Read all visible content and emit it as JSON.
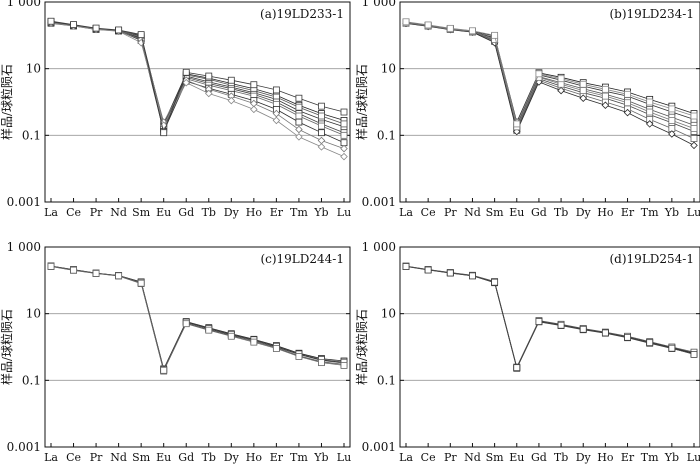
{
  "chart_data": [
    {
      "type": "line",
      "title": "(a)19LD233-1",
      "ylabel": "样品/球粒陨石",
      "xlabel": "",
      "y_scale": "log",
      "ylim": [
        0.001,
        1000
      ],
      "y_ticks": [
        "1 000",
        "10",
        "0.1",
        "0.001"
      ],
      "categories": [
        "La",
        "Ce",
        "Pr",
        "Nd",
        "Sm",
        "Eu",
        "Gd",
        "Tb",
        "Dy",
        "Ho",
        "Er",
        "Tm",
        "Yb",
        "Lu"
      ],
      "grid": true,
      "series": [
        {
          "values": [
            260,
            200,
            160,
            140,
            95,
            0.22,
            7.0,
            5.2,
            3.6,
            2.5,
            1.6,
            0.8,
            0.45,
            0.28
          ],
          "marker": "square"
        },
        {
          "values": [
            240,
            195,
            155,
            135,
            80,
            0.18,
            6.0,
            4.0,
            2.8,
            1.9,
            1.2,
            0.55,
            0.3,
            0.18
          ],
          "marker": "square"
        },
        {
          "values": [
            255,
            205,
            160,
            140,
            100,
            0.2,
            6.5,
            4.8,
            3.2,
            2.2,
            1.4,
            0.7,
            0.38,
            0.22
          ],
          "marker": "square"
        },
        {
          "values": [
            230,
            190,
            150,
            135,
            85,
            0.16,
            5.5,
            3.6,
            2.5,
            1.7,
            1.0,
            0.45,
            0.22,
            0.12
          ],
          "marker": "square"
        },
        {
          "values": [
            250,
            200,
            160,
            140,
            90,
            0.15,
            5.0,
            3.2,
            2.2,
            1.5,
            0.85,
            0.38,
            0.19,
            0.1
          ],
          "marker": "square"
        },
        {
          "values": [
            245,
            200,
            155,
            138,
            70,
            0.13,
            4.2,
            2.6,
            1.7,
            1.1,
            0.6,
            0.25,
            0.12,
            0.06
          ],
          "marker": "square"
        },
        {
          "values": [
            240,
            195,
            155,
            135,
            75,
            0.25,
            4.5,
            2.4,
            1.5,
            0.9,
            0.45,
            0.15,
            0.07,
            0.04
          ],
          "marker": "diamond"
        },
        {
          "values": [
            235,
            190,
            150,
            132,
            60,
            0.2,
            3.8,
            1.8,
            1.1,
            0.6,
            0.28,
            0.09,
            0.045,
            0.023
          ],
          "marker": "diamond"
        },
        {
          "values": [
            265,
            210,
            165,
            145,
            105,
            0.12,
            7.8,
            6.0,
            4.5,
            3.3,
            2.3,
            1.3,
            0.75,
            0.5
          ],
          "marker": "square"
        }
      ]
    },
    {
      "type": "line",
      "title": "(b)19LD234-1",
      "ylabel": "样品/球粒陨石",
      "xlabel": "",
      "y_scale": "log",
      "ylim": [
        0.001,
        1000
      ],
      "y_ticks": [
        "1 000",
        "10",
        "0.1",
        "0.001"
      ],
      "categories": [
        "La",
        "Ce",
        "Pr",
        "Nd",
        "Sm",
        "Eu",
        "Gd",
        "Tb",
        "Dy",
        "Ho",
        "Er",
        "Tm",
        "Yb",
        "Lu"
      ],
      "grid": true,
      "series": [
        {
          "values": [
            250,
            200,
            160,
            135,
            95,
            0.25,
            7.5,
            5.5,
            3.8,
            2.8,
            2.0,
            1.2,
            0.75,
            0.45
          ],
          "marker": "square"
        },
        {
          "values": [
            240,
            195,
            155,
            130,
            85,
            0.2,
            6.5,
            4.5,
            3.0,
            2.1,
            1.5,
            0.85,
            0.5,
            0.3
          ],
          "marker": "square"
        },
        {
          "values": [
            245,
            195,
            158,
            132,
            80,
            0.17,
            5.8,
            3.8,
            2.5,
            1.7,
            1.1,
            0.6,
            0.35,
            0.2
          ],
          "marker": "square"
        },
        {
          "values": [
            235,
            190,
            150,
            128,
            70,
            0.15,
            5.0,
            3.0,
            1.9,
            1.3,
            0.8,
            0.42,
            0.24,
            0.13
          ],
          "marker": "square"
        },
        {
          "values": [
            230,
            188,
            150,
            125,
            65,
            0.14,
            4.5,
            2.6,
            1.6,
            1.0,
            0.62,
            0.3,
            0.16,
            0.08
          ],
          "marker": "square"
        },
        {
          "values": [
            228,
            185,
            148,
            125,
            60,
            0.13,
            4.0,
            2.2,
            1.3,
            0.8,
            0.48,
            0.22,
            0.11,
            0.05
          ],
          "marker": "diamond"
        },
        {
          "values": [
            238,
            192,
            152,
            130,
            75,
            0.18,
            5.5,
            3.4,
            2.2,
            1.5,
            0.95,
            0.5,
            0.28,
            0.16
          ],
          "marker": "square"
        },
        {
          "values": [
            255,
            205,
            162,
            137,
            100,
            0.22,
            7.0,
            5.0,
            3.4,
            2.4,
            1.7,
            1.0,
            0.62,
            0.38
          ],
          "marker": "square"
        }
      ]
    },
    {
      "type": "line",
      "title": "(c)19LD244-1",
      "ylabel": "样品/球粒陨石",
      "xlabel": "",
      "y_scale": "log",
      "ylim": [
        0.001,
        1000
      ],
      "y_ticks": [
        "1 000",
        "10",
        "0.1",
        "0.001"
      ],
      "categories": [
        "La",
        "Ce",
        "Pr",
        "Nd",
        "Sm",
        "Eu",
        "Gd",
        "Tb",
        "Dy",
        "Ho",
        "Er",
        "Tm",
        "Yb",
        "Lu"
      ],
      "grid": true,
      "series": [
        {
          "values": [
            270,
            210,
            165,
            140,
            90,
            0.22,
            5.8,
            3.8,
            2.5,
            1.7,
            1.1,
            0.65,
            0.45,
            0.38
          ],
          "marker": "square"
        },
        {
          "values": [
            265,
            205,
            162,
            138,
            85,
            0.2,
            5.5,
            3.5,
            2.3,
            1.6,
            1.0,
            0.6,
            0.4,
            0.33
          ],
          "marker": "square"
        },
        {
          "values": [
            260,
            200,
            160,
            135,
            80,
            0.19,
            5.2,
            3.3,
            2.2,
            1.5,
            0.95,
            0.55,
            0.36,
            0.3
          ],
          "marker": "square"
        },
        {
          "values": [
            268,
            208,
            164,
            139,
            88,
            0.21,
            5.6,
            3.6,
            2.4,
            1.65,
            1.05,
            0.62,
            0.42,
            0.35
          ],
          "marker": "square"
        },
        {
          "values": [
            262,
            202,
            161,
            137,
            82,
            0.2,
            5.0,
            3.2,
            2.1,
            1.4,
            0.9,
            0.52,
            0.34,
            0.28
          ],
          "marker": "square"
        }
      ]
    },
    {
      "type": "line",
      "title": "(d)19LD254-1",
      "ylabel": "样品/球粒陨石",
      "xlabel": "",
      "y_scale": "log",
      "ylim": [
        0.001,
        1000
      ],
      "y_ticks": [
        "1 000",
        "10",
        "0.1",
        "0.001"
      ],
      "categories": [
        "La",
        "Ce",
        "Pr",
        "Nd",
        "Sm",
        "Eu",
        "Gd",
        "Tb",
        "Dy",
        "Ho",
        "Er",
        "Tm",
        "Yb",
        "Lu"
      ],
      "grid": true,
      "series": [
        {
          "values": [
            265,
            210,
            170,
            140,
            90,
            0.24,
            6.0,
            4.6,
            3.5,
            2.7,
            2.0,
            1.4,
            0.95,
            0.65
          ],
          "marker": "square"
        },
        {
          "values": [
            262,
            205,
            165,
            137,
            85,
            0.23,
            5.7,
            4.4,
            3.3,
            2.6,
            1.9,
            1.3,
            0.9,
            0.62
          ],
          "marker": "square"
        },
        {
          "values": [
            268,
            212,
            172,
            142,
            92,
            0.25,
            6.2,
            4.8,
            3.6,
            2.8,
            2.1,
            1.45,
            1.0,
            0.7
          ],
          "marker": "square"
        },
        {
          "values": [
            260,
            204,
            166,
            136,
            88,
            0.24,
            5.8,
            4.5,
            3.4,
            2.65,
            1.95,
            1.35,
            0.92,
            0.6
          ],
          "marker": "square"
        }
      ]
    }
  ]
}
